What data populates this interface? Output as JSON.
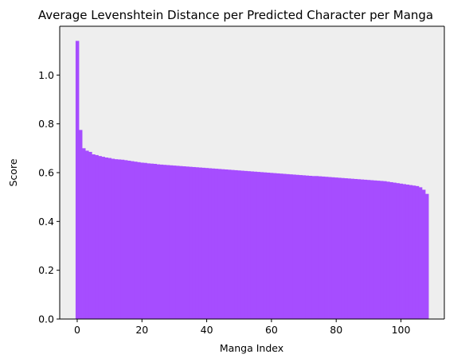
{
  "chart_data": {
    "type": "bar",
    "title": "Average Levenshtein Distance per Predicted Character per Manga",
    "xlabel": "Manga Index",
    "ylabel": "Score",
    "xlim": [
      -5.4,
      113.4
    ],
    "ylim": [
      0,
      1.2
    ],
    "xticks": [
      0,
      20,
      40,
      60,
      80,
      100
    ],
    "yticks": [
      0.0,
      0.2,
      0.4,
      0.6,
      0.8,
      1.0
    ],
    "ytick_labels": [
      "0.0",
      "0.2",
      "0.4",
      "0.6",
      "0.8",
      "1.0"
    ],
    "grid": false,
    "bar_color": "#a64dff",
    "plot_background": "#eeeeee",
    "x": [
      0,
      1,
      2,
      3,
      4,
      5,
      6,
      7,
      8,
      9,
      10,
      11,
      12,
      13,
      14,
      15,
      16,
      17,
      18,
      19,
      20,
      21,
      22,
      23,
      24,
      25,
      26,
      27,
      28,
      29,
      30,
      31,
      32,
      33,
      34,
      35,
      36,
      37,
      38,
      39,
      40,
      41,
      42,
      43,
      44,
      45,
      46,
      47,
      48,
      49,
      50,
      51,
      52,
      53,
      54,
      55,
      56,
      57,
      58,
      59,
      60,
      61,
      62,
      63,
      64,
      65,
      66,
      67,
      68,
      69,
      70,
      71,
      72,
      73,
      74,
      75,
      76,
      77,
      78,
      79,
      80,
      81,
      82,
      83,
      84,
      85,
      86,
      87,
      88,
      89,
      90,
      91,
      92,
      93,
      94,
      95,
      96,
      97,
      98,
      99,
      100,
      101,
      102,
      103,
      104,
      105,
      106,
      107,
      108
    ],
    "values": [
      1.14,
      0.775,
      0.7,
      0.69,
      0.685,
      0.675,
      0.672,
      0.668,
      0.665,
      0.662,
      0.66,
      0.657,
      0.655,
      0.654,
      0.653,
      0.651,
      0.649,
      0.647,
      0.645,
      0.643,
      0.641,
      0.64,
      0.638,
      0.637,
      0.636,
      0.634,
      0.633,
      0.632,
      0.631,
      0.63,
      0.629,
      0.628,
      0.627,
      0.626,
      0.625,
      0.624,
      0.623,
      0.622,
      0.621,
      0.62,
      0.619,
      0.618,
      0.617,
      0.616,
      0.615,
      0.614,
      0.613,
      0.612,
      0.611,
      0.61,
      0.609,
      0.608,
      0.607,
      0.606,
      0.605,
      0.604,
      0.603,
      0.602,
      0.601,
      0.6,
      0.599,
      0.598,
      0.597,
      0.596,
      0.595,
      0.594,
      0.593,
      0.592,
      0.591,
      0.59,
      0.589,
      0.588,
      0.587,
      0.586,
      0.586,
      0.585,
      0.584,
      0.583,
      0.582,
      0.581,
      0.58,
      0.579,
      0.578,
      0.577,
      0.576,
      0.575,
      0.574,
      0.573,
      0.572,
      0.571,
      0.57,
      0.569,
      0.568,
      0.567,
      0.566,
      0.565,
      0.563,
      0.561,
      0.559,
      0.557,
      0.555,
      0.553,
      0.551,
      0.549,
      0.547,
      0.545,
      0.54,
      0.53,
      0.513
    ]
  }
}
